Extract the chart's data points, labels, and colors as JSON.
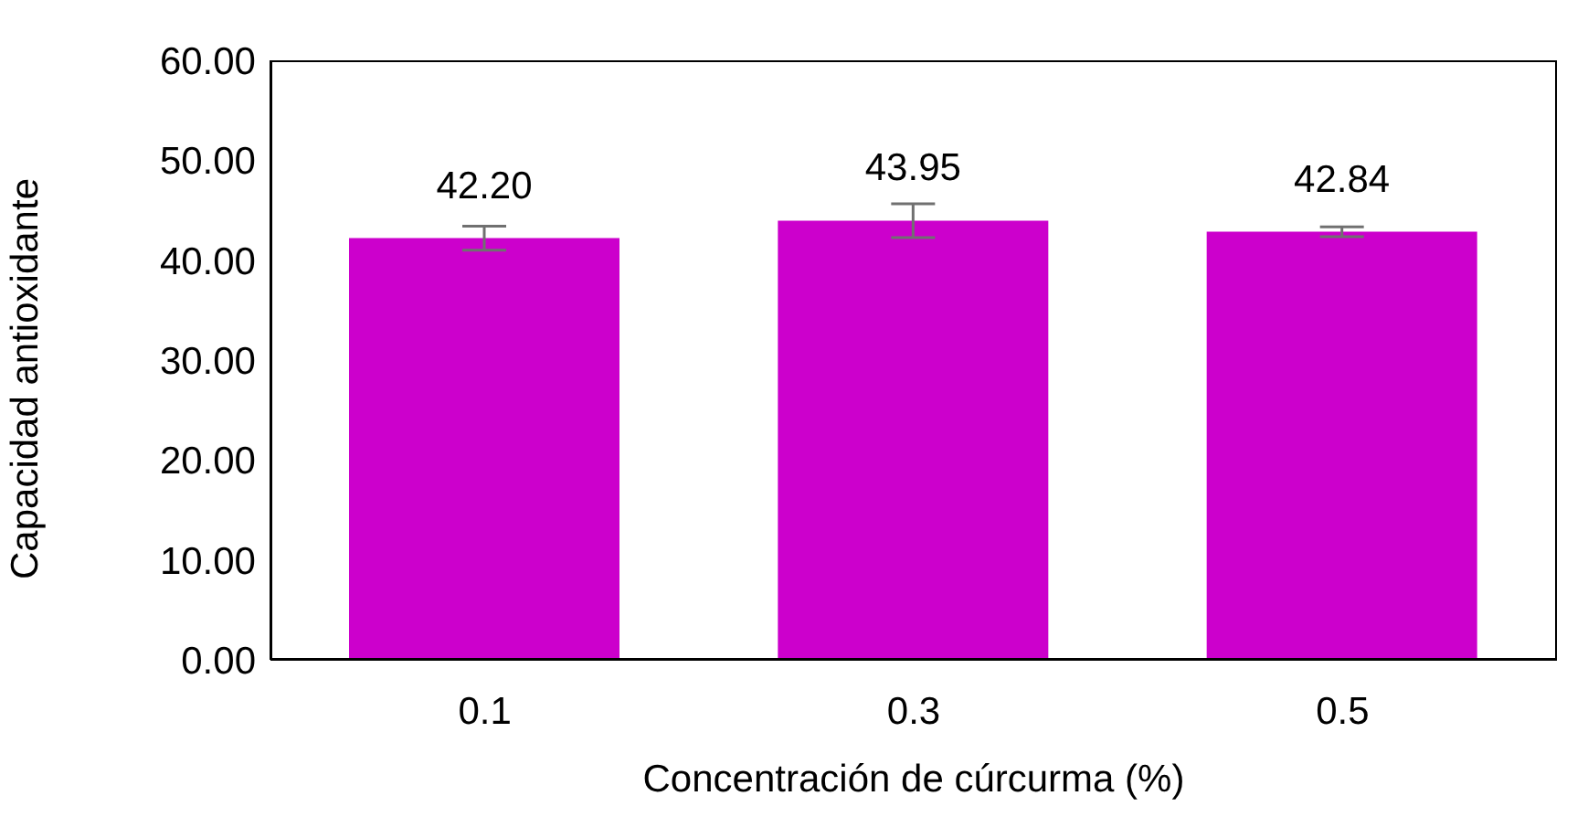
{
  "chart_data": {
    "type": "bar",
    "xlabel": "Concentración de cúrcurma (%)",
    "ylabel": "Capacidad antioxidante",
    "categories": [
      "0.1",
      "0.3",
      "0.5"
    ],
    "values": [
      42.2,
      43.95,
      42.84
    ],
    "errors": [
      1.2,
      1.7,
      0.5
    ],
    "color": "#cc00cc",
    "ylim": [
      0,
      60
    ],
    "yticks": [
      {
        "value": 0,
        "label": "0.00"
      },
      {
        "value": 10,
        "label": "10.00"
      },
      {
        "value": 20,
        "label": "20.00"
      },
      {
        "value": 30,
        "label": "30.00"
      },
      {
        "value": 40,
        "label": "40.00"
      },
      {
        "value": 50,
        "label": "50.00"
      },
      {
        "value": 60,
        "label": "60.00"
      }
    ],
    "value_labels": [
      "42.20",
      "43.95",
      "42.84"
    ],
    "grid": false,
    "legend": false
  }
}
